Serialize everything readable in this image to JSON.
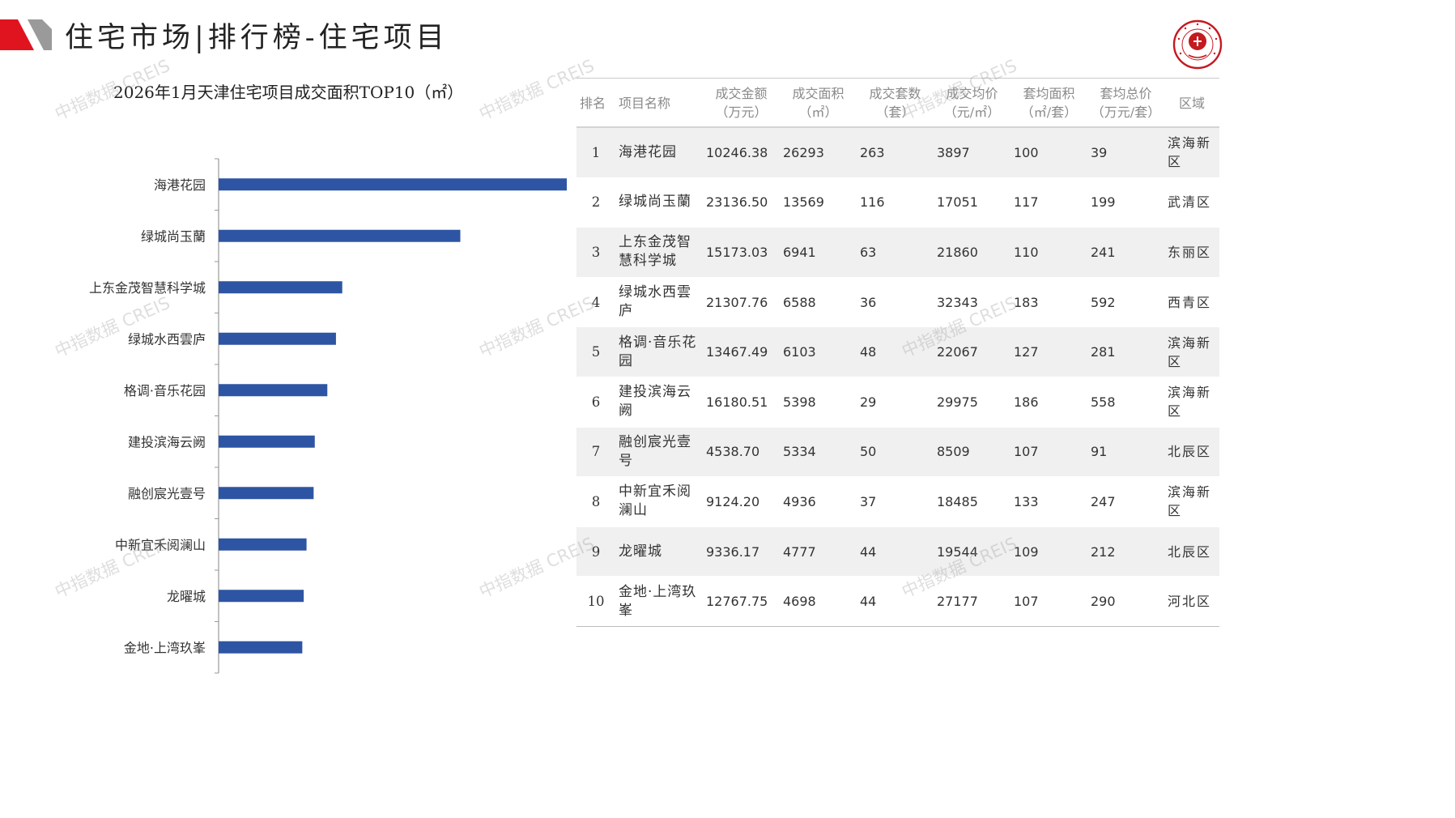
{
  "header": {
    "title": "住宅市场|排行榜-住宅项目",
    "brand_accent": "#e0141e"
  },
  "watermark": "中指数据 CREIS",
  "chart_data": {
    "type": "bar",
    "orientation": "horizontal",
    "title": "2026年1月天津住宅项目成交面积TOP10（㎡）",
    "categories": [
      "海港花园",
      "绿城尚玉蘭",
      "上东金茂智慧科学城",
      "绿城水西雲庐",
      "格调·音乐花园",
      "建投滨海云阙",
      "融创宸光壹号",
      "中新宜禾阅澜山",
      "龙曜城",
      "金地·上湾玖峯"
    ],
    "values": [
      26293,
      13569,
      6941,
      6588,
      6103,
      5398,
      5334,
      4936,
      4777,
      4698
    ],
    "xlim": [
      0,
      40000
    ],
    "color": "#2e55a4",
    "grid": false,
    "legend": "none"
  },
  "table": {
    "headers": [
      "排名",
      "项目名称",
      "成交金额\n（万元）",
      "成交面积\n（㎡）",
      "成交套数\n（套）",
      "成交均价\n（元/㎡）",
      "套均面积\n（㎡/套）",
      "套均总价\n（万元/套）",
      "区域"
    ],
    "rows": [
      [
        "1",
        "海港花园",
        "10246.38",
        "26293",
        "263",
        "3897",
        "100",
        "39",
        "滨海新区"
      ],
      [
        "2",
        "绿城尚玉蘭",
        "23136.50",
        "13569",
        "116",
        "17051",
        "117",
        "199",
        "武清区"
      ],
      [
        "3",
        "上东金茂智慧科学城",
        "15173.03",
        "6941",
        "63",
        "21860",
        "110",
        "241",
        "东丽区"
      ],
      [
        "4",
        "绿城水西雲庐",
        "21307.76",
        "6588",
        "36",
        "32343",
        "183",
        "592",
        "西青区"
      ],
      [
        "5",
        "格调·音乐花园",
        "13467.49",
        "6103",
        "48",
        "22067",
        "127",
        "281",
        "滨海新区"
      ],
      [
        "6",
        "建投滨海云阙",
        "16180.51",
        "5398",
        "29",
        "29975",
        "186",
        "558",
        "滨海新区"
      ],
      [
        "7",
        "融创宸光壹号",
        "4538.70",
        "5334",
        "50",
        "8509",
        "107",
        "91",
        "北辰区"
      ],
      [
        "8",
        "中新宜禾阅澜山",
        "9124.20",
        "4936",
        "37",
        "18485",
        "133",
        "247",
        "滨海新区"
      ],
      [
        "9",
        "龙曜城",
        "9336.17",
        "4777",
        "44",
        "19544",
        "109",
        "212",
        "北辰区"
      ],
      [
        "10",
        "金地·上湾玖峯",
        "12767.75",
        "4698",
        "44",
        "27177",
        "107",
        "290",
        "河北区"
      ]
    ]
  }
}
